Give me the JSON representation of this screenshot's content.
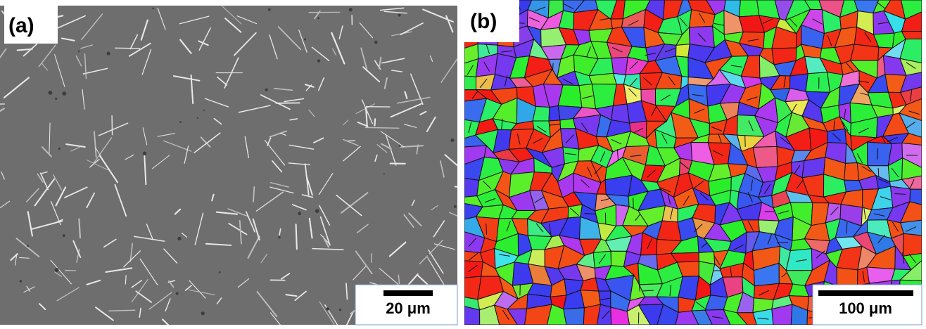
{
  "panels": [
    {
      "label": "(a)",
      "scale_bar": "20 μm"
    },
    {
      "label": "(b)",
      "scale_bar": "100 μm"
    }
  ]
}
